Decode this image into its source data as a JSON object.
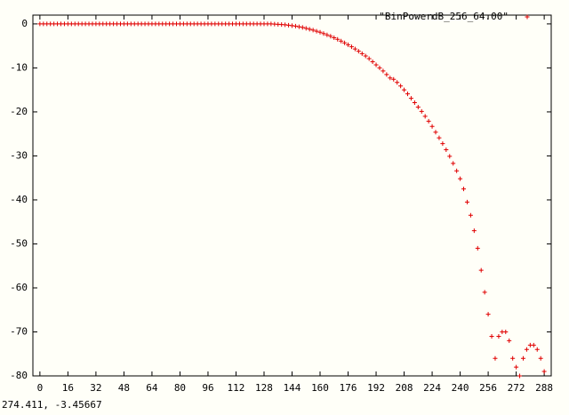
{
  "chart_data": {
    "type": "scatter",
    "legend": "upper right",
    "xlim": [
      -4,
      292
    ],
    "ylim": [
      -80,
      2
    ],
    "xticks": [
      0,
      16,
      32,
      48,
      64,
      80,
      96,
      112,
      128,
      144,
      160,
      176,
      192,
      208,
      224,
      240,
      256,
      272,
      288
    ],
    "yticks": [
      0,
      -10,
      -20,
      -30,
      -40,
      -50,
      -60,
      -70,
      -80
    ],
    "series": [
      {
        "name": "\"BinPowerdB_256_64.00\"",
        "color": "#e00000",
        "x": [
          0,
          2,
          4,
          6,
          8,
          10,
          12,
          14,
          16,
          18,
          20,
          22,
          24,
          26,
          28,
          30,
          32,
          34,
          36,
          38,
          40,
          42,
          44,
          46,
          48,
          50,
          52,
          54,
          56,
          58,
          60,
          62,
          64,
          66,
          68,
          70,
          72,
          74,
          76,
          78,
          80,
          82,
          84,
          86,
          88,
          90,
          92,
          94,
          96,
          98,
          100,
          102,
          104,
          106,
          108,
          110,
          112,
          114,
          116,
          118,
          120,
          122,
          124,
          126,
          128,
          130,
          132,
          134,
          136,
          138,
          140,
          142,
          144,
          146,
          148,
          150,
          152,
          154,
          156,
          158,
          160,
          162,
          164,
          166,
          168,
          170,
          172,
          174,
          176,
          178,
          180,
          182,
          184,
          186,
          188,
          190,
          192,
          194,
          196,
          198,
          200,
          202,
          204,
          206,
          208,
          210,
          212,
          214,
          216,
          218,
          220,
          222,
          224,
          226,
          228,
          230,
          232,
          234,
          236,
          238,
          240,
          242,
          244,
          246,
          248,
          250,
          252,
          254,
          256,
          258,
          260,
          262,
          264,
          266,
          268,
          270,
          272,
          274,
          276,
          278,
          280,
          282,
          284,
          286,
          288
        ],
        "values": [
          0,
          0,
          0,
          0,
          0,
          0,
          0,
          0,
          0,
          0,
          0,
          0,
          0,
          0,
          0,
          0,
          0,
          0,
          0,
          0,
          0,
          0,
          0,
          0,
          0,
          0,
          0,
          0,
          0,
          0,
          0,
          0,
          0,
          0,
          0,
          0,
          0,
          0,
          0,
          0,
          0,
          0,
          0,
          0,
          0,
          0,
          0,
          0,
          0,
          0,
          0,
          0,
          0,
          0,
          0,
          0,
          0,
          0,
          0,
          0,
          0,
          0,
          0,
          0,
          0,
          0,
          0,
          -0.05,
          -0.1,
          -0.15,
          -0.2,
          -0.3,
          -0.4,
          -0.5,
          -0.65,
          -0.8,
          -1,
          -1.2,
          -1.4,
          -1.65,
          -1.9,
          -2.2,
          -2.5,
          -2.8,
          -3.15,
          -3.5,
          -3.9,
          -4.3,
          -4.75,
          -5.2,
          -5.7,
          -6.2,
          -6.75,
          -7.3,
          -7.9,
          -8.6,
          -9.3,
          -10,
          -10.7,
          -11.5,
          -12.3,
          -12.6,
          -13.3,
          -14.1,
          -15,
          -15.9,
          -16.9,
          -17.9,
          -18.9,
          -19.9,
          -21,
          -22.1,
          -23.3,
          -24.6,
          -25.9,
          -27.2,
          -28.6,
          -30.1,
          -31.7,
          -33.4,
          -35.2,
          -37.5,
          -40.5,
          -43.5,
          -47,
          -51,
          -56,
          -61,
          -66,
          -71,
          -76,
          -71,
          -70,
          -70,
          -72,
          -76,
          -78,
          -80,
          -76,
          -74,
          -73,
          -73,
          -74,
          -76,
          -79
        ]
      }
    ]
  },
  "status": "274.411, -3.45667"
}
